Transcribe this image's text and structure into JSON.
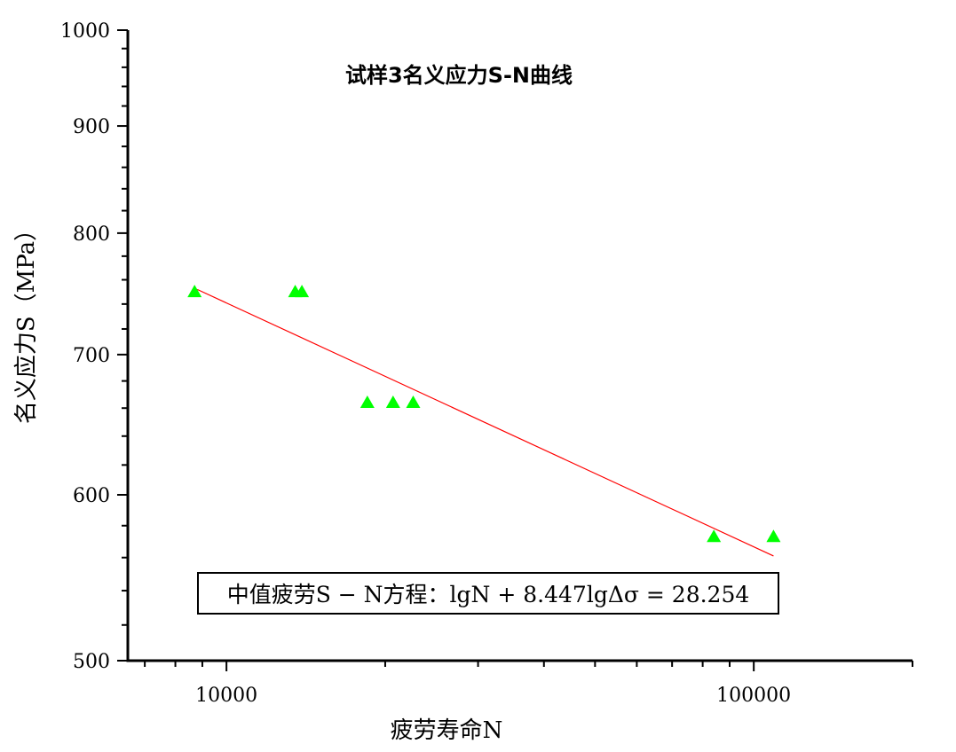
{
  "chart_data": {
    "type": "scatter",
    "title": "试样3名义应力S-N曲线",
    "xlabel": "疲劳寿命N",
    "ylabel": "名义应力S（MPa）",
    "xscale": "log",
    "yscale": "log",
    "xlim": [
      6500,
      200000
    ],
    "ylim": [
      500,
      1000
    ],
    "xticks": [
      10000,
      100000
    ],
    "xtick_labels": [
      "10000",
      "100000"
    ],
    "yticks": [
      500,
      600,
      700,
      800,
      900,
      1000
    ],
    "ytick_labels": [
      "500",
      "600",
      "700",
      "800",
      "900",
      "1000"
    ],
    "series": [
      {
        "marker": "triangle",
        "color": "#00ff00",
        "points": [
          [
            8700,
            750
          ],
          [
            13500,
            750
          ],
          [
            13900,
            750
          ],
          [
            18500,
            664
          ],
          [
            20700,
            664
          ],
          [
            22600,
            664
          ],
          [
            84000,
            573
          ],
          [
            109000,
            573
          ]
        ]
      },
      {
        "kind": "fit-line",
        "color": "#ff0000",
        "points": [
          [
            8800,
            752
          ],
          [
            109000,
            561
          ]
        ]
      }
    ],
    "annotation": "中值疲劳S − N方程：lgN + 8.447lgΔσ = 28.254",
    "grid": false
  }
}
